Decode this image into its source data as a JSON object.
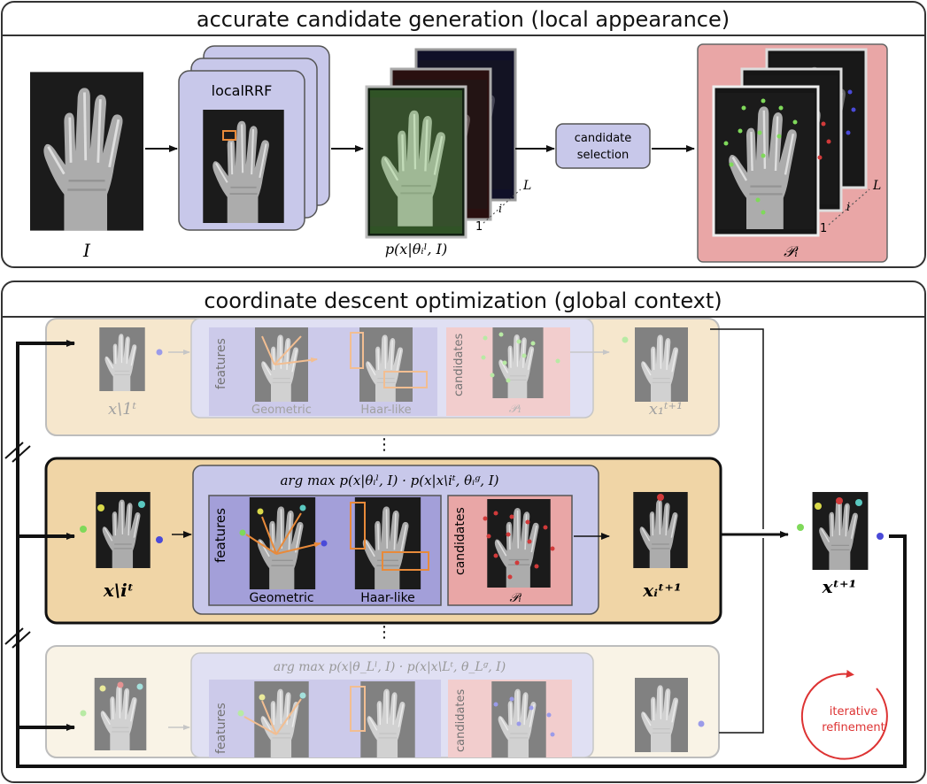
{
  "colors": {
    "panel_border": "#333333",
    "lavender": "#c8c8ea",
    "lavender_dark": "#a39fd9",
    "peach": "#f0d5a6",
    "peach_light": "#f5ead3",
    "pink": "#e9a6a6",
    "xray_bg": "#1d1d1d",
    "green": "#7fd95a",
    "red": "#d13a3a",
    "blue": "#4a4ad8",
    "orange": "#e88a3a",
    "yellow": "#d9d94a",
    "teal": "#5ac8c0"
  },
  "top_panel": {
    "title": "accurate candidate generation (local appearance)",
    "input_label": "I",
    "rrf_label": "localRRF",
    "prob_label": "p(x|θᵢˡ, I)",
    "selection_line1": "candidate",
    "selection_line2": "selection",
    "candidates_label": "𝒫ᵢ",
    "stack_index_1": "1",
    "stack_index_i": "i",
    "stack_index_L": "L"
  },
  "bottom_panel": {
    "title": "coordinate descent optimization (global context)",
    "vdots": "⋮",
    "rows": [
      {
        "state": "faded",
        "input_label": "x\\1ᵗ",
        "argmax_formula": "",
        "features_label": "features",
        "geometric_label": "Geometric",
        "haar_label": "Haar-like",
        "candidates_label": "candidates",
        "pset_label": "𝒫₁",
        "output_label": "x₁ᵗ⁺¹"
      },
      {
        "state": "active",
        "input_label": "x\\iᵗ",
        "argmax_formula": "arg max p(x|θᵢˡ, I) · p(x|x\\iᵗ, θᵢᵍ, I)",
        "features_label": "features",
        "geometric_label": "Geometric",
        "haar_label": "Haar-like",
        "candidates_label": "candidates",
        "pset_label": "𝒫ᵢ",
        "output_label": "xᵢᵗ⁺¹"
      },
      {
        "state": "faded",
        "input_label": "",
        "argmax_formula": "arg max p(x|θ_Lˡ, I) · p(x|x\\Lᵗ, θ_Lᵍ, I)",
        "features_label": "features",
        "geometric_label": "",
        "haar_label": "",
        "candidates_label": "candidates",
        "pset_label": "",
        "output_label": ""
      }
    ],
    "result_label": "xᵗ⁺¹",
    "refinement_line1": "iterative",
    "refinement_line2": "refinement"
  }
}
